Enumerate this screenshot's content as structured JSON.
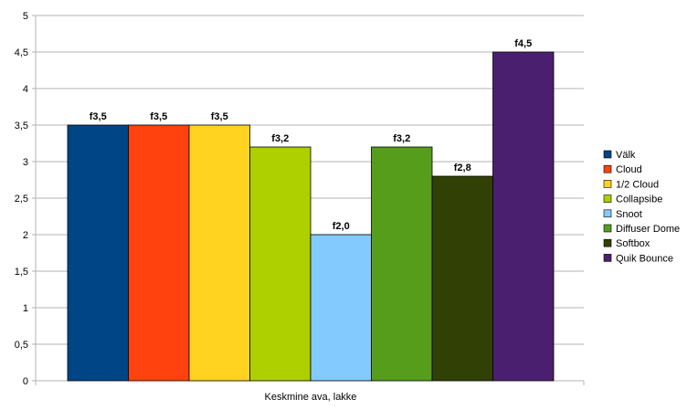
{
  "chart_data": {
    "type": "bar",
    "title": "",
    "xlabel": "",
    "ylabel": "",
    "categories": [
      "Keskmine ava, lakke"
    ],
    "ylim": [
      0,
      5
    ],
    "yticks": [
      "0",
      "0,5",
      "1",
      "1,5",
      "2",
      "2,5",
      "3",
      "3,5",
      "4",
      "4,5",
      "5"
    ],
    "grid": true,
    "legend_position": "right",
    "series": [
      {
        "name": "Välk",
        "values": [
          3.5
        ],
        "label": "f3,5",
        "color": "#004586"
      },
      {
        "name": "Cloud",
        "values": [
          3.5
        ],
        "label": "f3,5",
        "color": "#ff420e"
      },
      {
        "name": "1/2 Cloud",
        "values": [
          3.5
        ],
        "label": "f3,5",
        "color": "#ffd320"
      },
      {
        "name": "Collapsibe",
        "values": [
          3.2
        ],
        "label": "f3,2",
        "color": "#aecf00"
      },
      {
        "name": "Snoot",
        "values": [
          2.0
        ],
        "label": "f2,0",
        "color": "#83caff"
      },
      {
        "name": "Diffuser Dome",
        "values": [
          3.2
        ],
        "label": "f3,2",
        "color": "#579d1c"
      },
      {
        "name": "Softbox",
        "values": [
          2.8
        ],
        "label": "f2,8",
        "color": "#314004"
      },
      {
        "name": "Quik Bounce",
        "values": [
          4.5
        ],
        "label": "f4,5",
        "color": "#4b1f6f"
      }
    ]
  }
}
